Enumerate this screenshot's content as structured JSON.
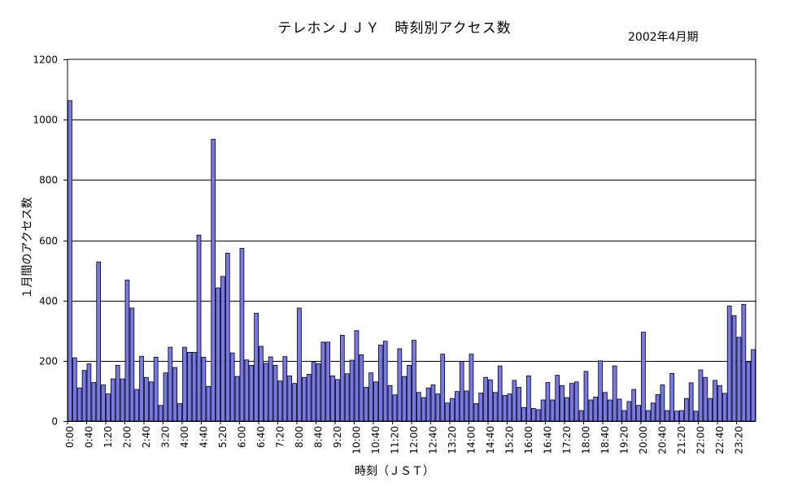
{
  "chart_data": {
    "type": "bar",
    "title": "テレホンＪＪＹ　時刻別アクセス数",
    "subtitle": "2002年4月期",
    "xlabel": "時刻（ＪＳＴ）",
    "ylabel": "１月間のアクセス数",
    "ylim": [
      0,
      1200
    ],
    "yticks": [
      0,
      200,
      400,
      600,
      800,
      1000,
      1200
    ],
    "grid": true,
    "bar_color": "#7777ee",
    "categories": [
      "0:00",
      "0:10",
      "0:20",
      "0:30",
      "0:40",
      "0:50",
      "1:00",
      "1:10",
      "1:20",
      "1:30",
      "1:40",
      "1:50",
      "2:00",
      "2:10",
      "2:20",
      "2:30",
      "2:40",
      "2:50",
      "3:00",
      "3:10",
      "3:20",
      "3:30",
      "3:40",
      "3:50",
      "4:00",
      "4:10",
      "4:20",
      "4:30",
      "4:40",
      "4:50",
      "5:00",
      "5:10",
      "5:20",
      "5:30",
      "5:40",
      "5:50",
      "6:00",
      "6:10",
      "6:20",
      "6:30",
      "6:40",
      "6:50",
      "7:00",
      "7:10",
      "7:20",
      "7:30",
      "7:40",
      "7:50",
      "8:00",
      "8:10",
      "8:20",
      "8:30",
      "8:40",
      "8:50",
      "9:00",
      "9:10",
      "9:20",
      "9:30",
      "9:40",
      "9:50",
      "10:00",
      "10:10",
      "10:20",
      "10:30",
      "10:40",
      "10:50",
      "11:00",
      "11:10",
      "11:20",
      "11:30",
      "11:40",
      "11:50",
      "12:00",
      "12:10",
      "12:20",
      "12:30",
      "12:40",
      "12:50",
      "13:00",
      "13:10",
      "13:20",
      "13:30",
      "13:40",
      "13:50",
      "14:00",
      "14:10",
      "14:20",
      "14:30",
      "14:40",
      "14:50",
      "15:00",
      "15:10",
      "15:20",
      "15:30",
      "15:40",
      "15:50",
      "16:00",
      "16:10",
      "16:20",
      "16:30",
      "16:40",
      "16:50",
      "17:00",
      "17:10",
      "17:20",
      "17:30",
      "17:40",
      "17:50",
      "18:00",
      "18:10",
      "18:20",
      "18:30",
      "18:40",
      "18:50",
      "19:00",
      "19:10",
      "19:20",
      "19:30",
      "19:40",
      "19:50",
      "20:00",
      "20:10",
      "20:20",
      "20:30",
      "20:40",
      "20:50",
      "21:00",
      "21:10",
      "21:20",
      "21:30",
      "21:40",
      "21:50",
      "22:00",
      "22:10",
      "22:20",
      "22:30",
      "22:40",
      "22:50",
      "23:00",
      "23:10",
      "23:20",
      "23:30",
      "23:40",
      "23:50"
    ],
    "tick_labels": [
      "0:00",
      "0:40",
      "1:20",
      "2:00",
      "2:40",
      "3:20",
      "4:00",
      "4:40",
      "5:20",
      "6:00",
      "6:40",
      "7:20",
      "8:00",
      "8:40",
      "9:20",
      "10:00",
      "10:40",
      "11:20",
      "12:00",
      "12:40",
      "13:20",
      "14:00",
      "14:40",
      "15:20",
      "16:00",
      "16:40",
      "17:20",
      "18:00",
      "18:40",
      "19:20",
      "20:00",
      "20:40",
      "21:20",
      "22:00",
      "22:40",
      "23:20"
    ],
    "values": [
      1063,
      210,
      110,
      168,
      190,
      128,
      528,
      120,
      90,
      140,
      185,
      140,
      468,
      375,
      105,
      215,
      145,
      130,
      212,
      52,
      160,
      245,
      178,
      58,
      245,
      228,
      228,
      617,
      212,
      115,
      935,
      442,
      480,
      557,
      226,
      148,
      573,
      203,
      185,
      358,
      248,
      192,
      213,
      185,
      133,
      214,
      150,
      125,
      375,
      145,
      155,
      195,
      190,
      262,
      262,
      150,
      138,
      285,
      157,
      202,
      300,
      220,
      112,
      160,
      130,
      252,
      265,
      118,
      87,
      240,
      148,
      185,
      268,
      95,
      78,
      110,
      120,
      90,
      222,
      60,
      75,
      98,
      198,
      100,
      222,
      58,
      93,
      145,
      137,
      95,
      183,
      85,
      90,
      135,
      112,
      45,
      150,
      42,
      38,
      70,
      128,
      70,
      152,
      118,
      78,
      125,
      130,
      35,
      165,
      70,
      80,
      200,
      95,
      70,
      183,
      73,
      35,
      65,
      105,
      52,
      295,
      35,
      60,
      88,
      120,
      35,
      158,
      33,
      35,
      75,
      127,
      33,
      170,
      145,
      75,
      135,
      118,
      92,
      382,
      350,
      278,
      387,
      195,
      237
    ]
  }
}
